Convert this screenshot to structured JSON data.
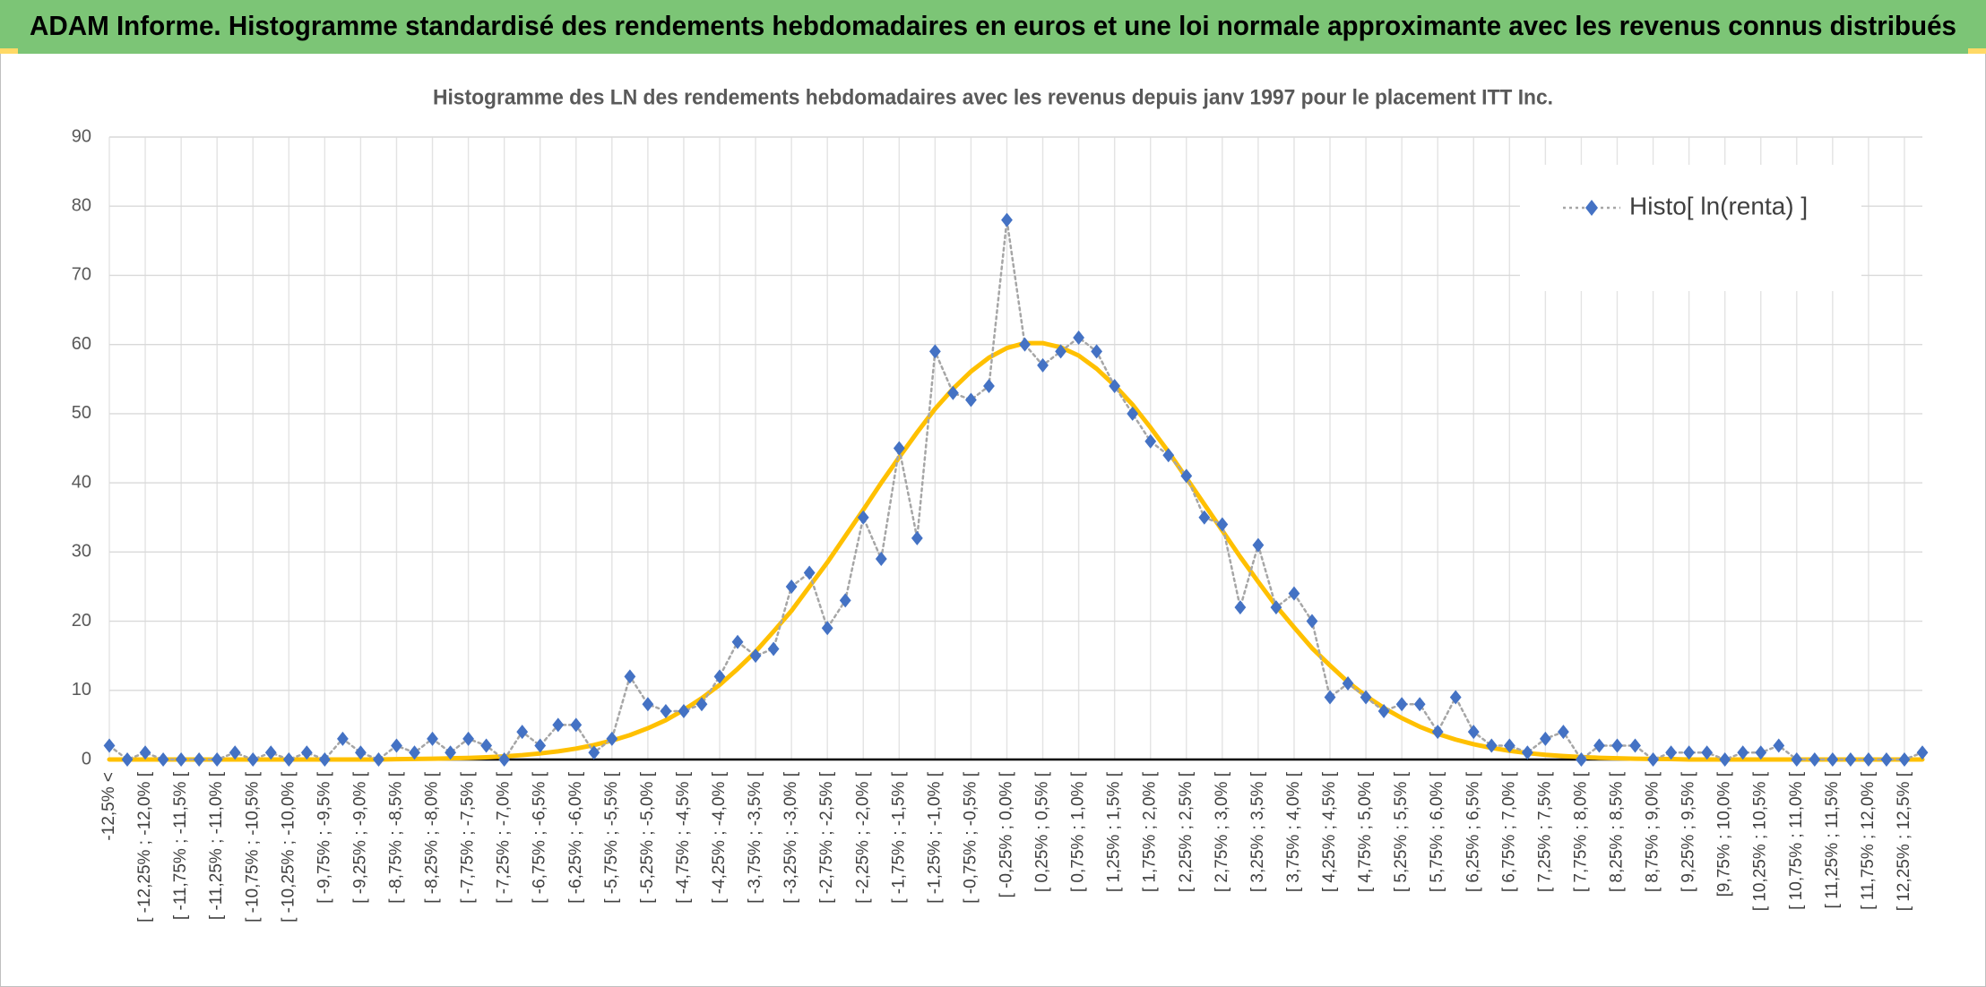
{
  "header": {
    "title": "ADAM Informe. Histogramme standardisé des rendements hebdomadaires en euros et une loi normale approximante avec les revenus connus distribués"
  },
  "chart_data": {
    "type": "line",
    "title": "Histogramme des LN des rendements hebdomadaires avec les revenus depuis janv 1997 pour le placement ITT Inc.",
    "categories": [
      "-12,5% <",
      null,
      "[ -12,25% ; -12,0% [",
      null,
      "[ -11,75% ; -11,5% [",
      null,
      "[ -11,25% ; -11,0% [",
      null,
      "[ -10,75% ; -10,5% [",
      null,
      "[ -10,25% ; -10,0% [",
      null,
      "[ -9,75% ; -9,5% [",
      null,
      "[ -9,25% ; -9,0% [",
      null,
      "[ -8,75% ; -8,5% [",
      null,
      "[ -8,25% ; -8,0% [",
      null,
      "[ -7,75% ; -7,5% [",
      null,
      "[ -7,25% ; -7,0% [",
      null,
      "[ -6,75% ; -6,5% [",
      null,
      "[ -6,25% ; -6,0% [",
      null,
      "[ -5,75% ; -5,5% [",
      null,
      "[ -5,25% ; -5,0% [",
      null,
      "[ -4,75% ; -4,5% [",
      null,
      "[ -4,25% ; -4,0% [",
      null,
      "[ -3,75% ; -3,5% [",
      null,
      "[ -3,25% ; -3,0% [",
      null,
      "[ -2,75% ; -2,5% [",
      null,
      "[ -2,25% ; -2,0% [",
      null,
      "[ -1,75% ; -1,5% [",
      null,
      "[ -1,25% ; -1,0% [",
      null,
      "[ -0,75% ; -0,5% [",
      null,
      "[ -0,25% ; 0,0% [",
      null,
      "[ 0,25% ; 0,5% [",
      null,
      "[ 0,75% ; 1,0% [",
      null,
      "[ 1,25% ; 1,5% [",
      null,
      "[ 1,75% ; 2,0% [",
      null,
      "[ 2,25% ; 2,5% [",
      null,
      "[ 2,75% ; 3,0% [",
      null,
      "[ 3,25% ; 3,5% [",
      null,
      "[ 3,75% ; 4,0% [",
      null,
      "[ 4,25% ; 4,5% [",
      null,
      "[ 4,75% ; 5,0% [",
      null,
      "[ 5,25% ; 5,5% [",
      null,
      "[ 5,75% ; 6,0% [",
      null,
      "[ 6,25% ; 6,5% [",
      null,
      "[ 6,75% ; 7,0% [",
      null,
      "[ 7,25% ; 7,5% [",
      null,
      "[ 7,75% ; 8,0% [",
      null,
      "[ 8,25% ; 8,5% [",
      null,
      "[ 8,75% ; 9,0% [",
      null,
      "[ 9,25% ; 9,5% [",
      null,
      "[9,75% ; 10,0% [",
      null,
      "[ 10,25% ; 10,5% [",
      null,
      "[ 10,75% ; 11,0% [",
      null,
      "[ 11,25% ; 11,5% [",
      null,
      "[ 11,75% ; 12,0% [",
      null,
      "[ 12,25% ; 12,5% [",
      null
    ],
    "series": [
      {
        "name": "Histo[ ln(renta) ]",
        "color": "#4472c4",
        "line_color": "#a6a6a6",
        "line_style": "dotted",
        "marker": "diamond",
        "values": [
          2,
          0,
          1,
          0,
          0,
          0,
          0,
          1,
          0,
          1,
          0,
          1,
          0,
          3,
          1,
          0,
          2,
          1,
          3,
          1,
          3,
          2,
          0,
          4,
          2,
          5,
          5,
          1,
          3,
          12,
          8,
          7,
          7,
          8,
          12,
          17,
          15,
          16,
          25,
          27,
          19,
          23,
          35,
          29,
          45,
          32,
          59,
          53,
          52,
          54,
          78,
          60,
          57,
          59,
          61,
          59,
          54,
          50,
          46,
          44,
          41,
          35,
          34,
          22,
          31,
          22,
          24,
          20,
          9,
          11,
          9,
          7,
          8,
          8,
          4,
          9,
          4,
          2,
          2,
          1,
          3,
          4,
          0,
          2,
          2,
          2,
          0,
          1,
          1,
          1,
          0,
          1,
          1,
          2,
          0,
          0,
          0,
          0,
          0,
          0,
          0,
          1
        ]
      },
      {
        "color": "#ffc000",
        "line_style": "solid",
        "marker": "none",
        "values": [
          0,
          0,
          0,
          0,
          0,
          0,
          0,
          0,
          0,
          0,
          0,
          0,
          0,
          0,
          0,
          0,
          0.05,
          0.08,
          0.11,
          0.17,
          0.23,
          0.33,
          0.46,
          0.64,
          0.88,
          1.18,
          1.58,
          2.09,
          2.74,
          3.53,
          4.52,
          5.69,
          7.17,
          8.86,
          10.8,
          13.1,
          15.6,
          18.5,
          21.5,
          25.0,
          28.5,
          32.3,
          36.1,
          40.0,
          43.7,
          47.3,
          50.7,
          53.6,
          56.1,
          58.1,
          59.5,
          60.2,
          60.2,
          59.6,
          58.4,
          56.5,
          54.1,
          51.3,
          48.0,
          44.5,
          40.7,
          36.9,
          33.1,
          29.3,
          25.7,
          22.2,
          19.1,
          16.1,
          13.6,
          11.2,
          9.19,
          7.46,
          5.99,
          4.74,
          3.71,
          2.88,
          2.21,
          1.68,
          1.26,
          0.93,
          0.68,
          0.5,
          0.36,
          0.25,
          0.18,
          0.12,
          0.08,
          0.06,
          0,
          0,
          0,
          0,
          0,
          0,
          0,
          0,
          0,
          0,
          0,
          0,
          0,
          0
        ]
      }
    ],
    "ylim": [
      0,
      90
    ],
    "yticks": [
      0,
      10,
      20,
      30,
      40,
      50,
      60,
      70,
      80,
      90
    ],
    "grid": true,
    "legend": "top-right"
  }
}
